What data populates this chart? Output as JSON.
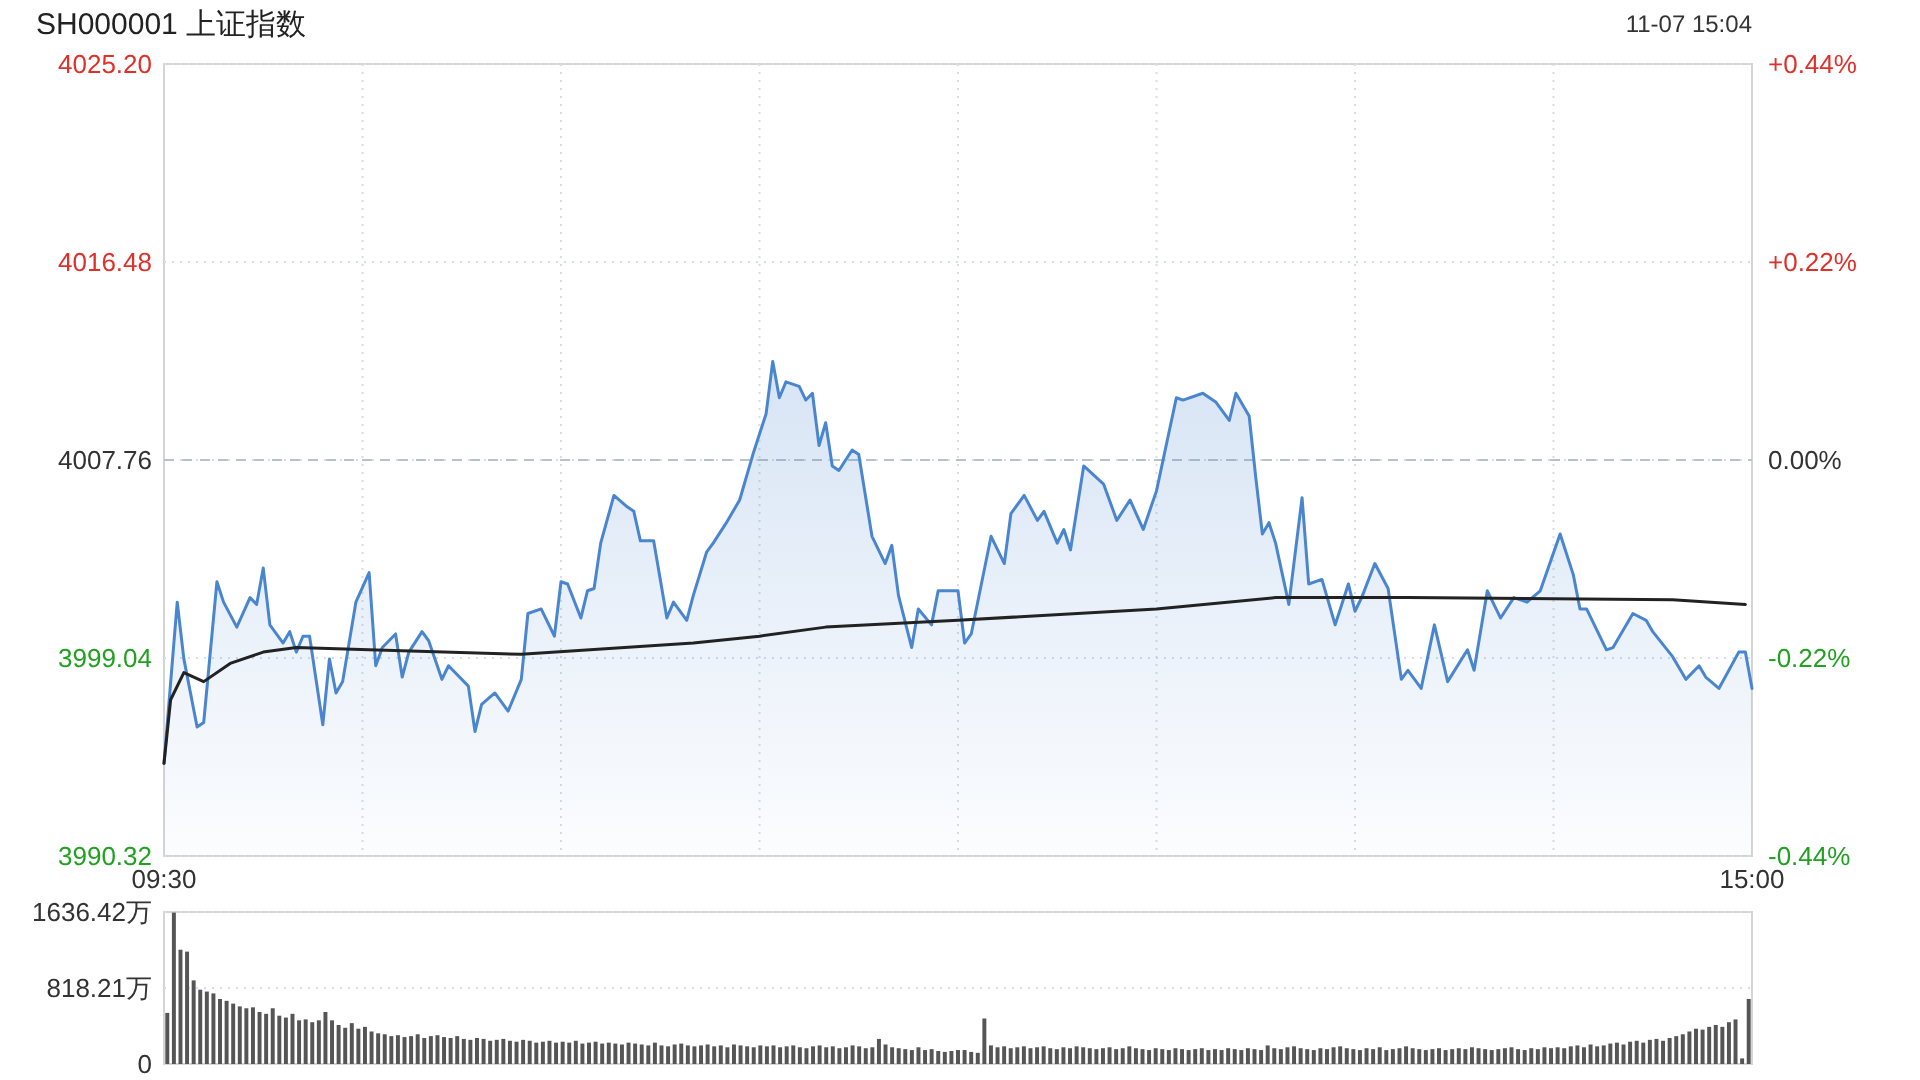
{
  "chart_data": [
    {
      "type": "line",
      "title": "SH000001 上证指数",
      "subtitle": "11-07 15:04",
      "categories": [
        "09:30",
        null,
        null,
        null,
        null,
        null,
        null,
        null,
        null,
        null,
        null,
        null,
        null,
        null,
        null,
        null,
        null,
        null,
        null,
        null,
        null,
        null,
        null,
        null,
        null,
        null,
        null,
        null,
        null,
        null,
        null,
        null,
        null,
        null,
        null,
        null,
        null,
        null,
        null,
        null,
        null,
        null,
        null,
        null,
        null,
        null,
        null,
        null,
        null,
        null,
        null,
        null,
        null,
        null,
        null,
        null,
        null,
        null,
        null,
        null,
        null,
        null,
        null,
        null,
        null,
        null,
        null,
        null,
        null,
        null,
        null,
        null,
        null,
        null,
        null,
        null,
        null,
        null,
        null,
        null,
        null,
        null,
        null,
        null,
        null,
        null,
        null,
        null,
        null,
        null,
        null,
        null,
        null,
        null,
        null,
        null,
        null,
        null,
        null,
        null,
        null,
        null,
        null,
        null,
        null,
        null,
        null,
        null,
        null,
        null,
        null,
        null,
        null,
        null,
        null,
        null,
        null,
        null,
        null,
        null,
        null,
        null,
        null,
        null,
        null,
        null,
        null,
        null,
        null,
        null,
        null,
        null,
        null,
        null,
        null,
        null,
        null,
        null,
        null,
        null,
        null,
        null,
        null,
        null,
        null,
        null,
        null,
        null,
        null,
        null,
        null,
        null,
        null,
        null,
        null,
        null,
        null,
        null,
        null,
        null,
        null,
        null,
        null,
        null,
        null,
        null,
        null,
        null,
        null,
        null,
        null,
        null,
        null,
        null,
        null,
        null,
        null,
        null,
        null,
        null,
        null,
        null,
        null,
        null,
        null,
        null,
        null,
        null,
        null,
        null,
        null,
        null,
        null,
        null,
        null,
        null,
        null,
        null,
        null,
        null,
        null,
        null,
        null,
        null,
        null,
        null,
        null,
        null,
        null,
        null,
        null,
        null,
        null,
        null,
        null,
        null,
        null,
        null,
        null,
        null,
        null,
        null,
        null,
        null,
        null,
        null,
        null,
        null,
        null,
        null,
        null,
        null,
        null,
        null,
        null,
        null,
        null,
        null,
        null,
        null,
        "15:00"
      ],
      "series": [
        {
          "type": "area",
          "color": "#4a86d0",
          "values": [
            3994.4,
            null,
            4001.5,
            3999.0,
            null,
            3996.0,
            3996.2,
            null,
            4002.4,
            4001.5,
            null,
            4000.4,
            null,
            4001.7,
            4001.4,
            4003.0,
            4000.5,
            null,
            3999.7,
            4000.2,
            3999.3,
            4000.0,
            4000.0,
            null,
            3996.1,
            3999.0,
            3997.5,
            3998.0,
            null,
            4001.5,
            null,
            4002.8,
            3998.7,
            3999.5,
            null,
            4000.1,
            3998.2,
            3999.3,
            null,
            4000.2,
            3999.8,
            null,
            3998.1,
            3998.7,
            null,
            null,
            3997.8,
            3995.8,
            3997.0,
            null,
            3997.5,
            null,
            3996.7,
            null,
            3998.1,
            4001.0,
            null,
            4001.2,
            null,
            4000.0,
            4002.4,
            4002.3,
            null,
            4000.8,
            4002.0,
            4002.1,
            4004.1,
            null,
            4006.2,
            null,
            4005.7,
            4005.5,
            4004.2,
            null,
            4004.2,
            null,
            4000.8,
            4001.5,
            null,
            4000.7,
            4001.8,
            null,
            4003.7,
            4004.1,
            null,
            4005.0,
            null,
            4006.0,
            null,
            4008.0,
            null,
            4009.8,
            4012.1,
            4010.5,
            4011.2,
            null,
            4011.0,
            4010.4,
            4010.7,
            4008.4,
            4009.4,
            4007.5,
            4007.3,
            null,
            4008.2,
            4008.0,
            null,
            4004.4,
            null,
            4003.2,
            4004.0,
            4001.8,
            null,
            3999.5,
            4001.2,
            null,
            4000.5,
            4002.0,
            null,
            null,
            4002.0,
            3999.7,
            4000.1,
            null,
            null,
            4004.4,
            null,
            4003.2,
            4005.4,
            null,
            4006.2,
            null,
            4005.1,
            4005.5,
            null,
            4004.1,
            4004.7,
            4003.8,
            null,
            4007.5,
            null,
            null,
            4006.7,
            null,
            4005.1,
            null,
            4006.0,
            null,
            4004.7,
            null,
            4006.4,
            null,
            null,
            4010.5,
            4010.4,
            null,
            null,
            4010.7,
            null,
            4010.3,
            null,
            4009.5,
            4010.7,
            null,
            4009.7,
            4007.0,
            4004.5,
            4005.0,
            4004.1,
            null,
            4001.4,
            null,
            4006.1,
            4002.3,
            null,
            4002.5,
            null,
            4000.5,
            null,
            4002.3,
            4001.1,
            4001.7,
            null,
            4003.2,
            null,
            4002.1,
            null,
            3998.1,
            3998.5,
            null,
            3997.7,
            null,
            4000.5,
            null,
            3998.0,
            null,
            null,
            3999.4,
            3998.5,
            null,
            4002.0,
            null,
            4000.8,
            null,
            4001.7,
            null,
            4001.5,
            null,
            4002.0,
            null,
            null,
            4004.5,
            null,
            4002.7,
            4001.2,
            4001.2,
            null,
            null,
            3999.4,
            3999.5,
            null,
            null,
            4001.0,
            null,
            4000.7,
            4000.2,
            null,
            null,
            3999.1,
            null,
            3998.1,
            null,
            3998.7,
            3998.2,
            null,
            3997.7,
            null,
            null,
            3999.3,
            3999.3,
            3997.7
          ]
        },
        {
          "type": "line",
          "color": "#222222",
          "values": [
            3994.4,
            3997.2,
            null,
            3998.4,
            null,
            null,
            3998.0,
            null,
            null,
            null,
            3998.8,
            null,
            null,
            null,
            null,
            3999.3,
            null,
            null,
            null,
            null,
            3999.5,
            null,
            null,
            null,
            null,
            null,
            null,
            null,
            null,
            null,
            null,
            3999.4,
            null,
            null,
            null,
            null,
            null,
            null,
            null,
            null,
            null,
            null,
            null,
            null,
            null,
            null,
            null,
            null,
            null,
            null,
            null,
            null,
            null,
            null,
            3999.2,
            null,
            null,
            null,
            null,
            null,
            null,
            null,
            null,
            null,
            null,
            null,
            null,
            null,
            null,
            null,
            null,
            null,
            null,
            null,
            null,
            null,
            null,
            null,
            null,
            null,
            3999.7,
            null,
            null,
            null,
            null,
            null,
            null,
            null,
            null,
            null,
            4000.0,
            null,
            null,
            null,
            null,
            null,
            null,
            null,
            null,
            null,
            4000.4,
            null,
            null,
            null,
            null,
            null,
            null,
            null,
            null,
            null,
            null,
            null,
            null,
            null,
            null,
            null,
            null,
            null,
            null,
            null,
            4000.7,
            null,
            null,
            null,
            null,
            null,
            null,
            null,
            null,
            null,
            null,
            null,
            null,
            null,
            null,
            null,
            null,
            null,
            null,
            null,
            null,
            null,
            null,
            null,
            null,
            null,
            null,
            null,
            null,
            null,
            4001.2,
            null,
            null,
            null,
            null,
            null,
            null,
            null,
            null,
            null,
            null,
            null,
            null,
            null,
            null,
            null,
            null,
            null,
            4001.7,
            null,
            null,
            null,
            null,
            null,
            null,
            null,
            null,
            null,
            null,
            null,
            null,
            null,
            null,
            null,
            null,
            null,
            null,
            null,
            4001.7,
            null,
            null,
            null,
            null,
            null,
            null,
            null,
            null,
            null,
            null,
            null,
            null,
            null,
            null,
            null,
            null,
            null,
            null,
            null,
            null,
            null,
            null,
            null,
            null,
            null,
            null,
            null,
            null,
            null,
            null,
            null,
            null,
            null,
            null,
            null,
            null,
            null,
            null,
            null,
            4001.6,
            null,
            null,
            null,
            null,
            null,
            null,
            null,
            null,
            null,
            null,
            4001.4,
            null
          ]
        }
      ],
      "ylim": [
        3990.32,
        4025.2
      ],
      "yticks": [
        {
          "value": 3990.32,
          "label": "3990.32"
        },
        {
          "value": 3999.04,
          "label": "3999.04"
        },
        {
          "value": 4007.76,
          "label": "4007.76"
        },
        {
          "value": 4016.48,
          "label": "4016.48"
        },
        {
          "value": 4025.2,
          "label": "4025.20"
        }
      ],
      "y2lim": [
        -0.44,
        0.44
      ],
      "y2ticks": [
        {
          "value": -0.44,
          "label": "-0.44%"
        },
        {
          "value": -0.22,
          "label": "-0.22%"
        },
        {
          "value": 0,
          "label": "0.00%"
        },
        {
          "value": 0.22,
          "label": "+0.22%"
        },
        {
          "value": 0.44,
          "label": "+0.44%"
        }
      ],
      "grid": true,
      "ref_lines": [
        {
          "axis": "y",
          "value": 4007.76,
          "line_style": "dashed"
        }
      ]
    },
    {
      "type": "bar",
      "color": "#555555",
      "categories": [
        null,
        null,
        null,
        null,
        null,
        null,
        null,
        null,
        null,
        null,
        null,
        null,
        null,
        null,
        null,
        null,
        null,
        null,
        null,
        null,
        null,
        null,
        null,
        null,
        null,
        null,
        null,
        null,
        null,
        null,
        null,
        null,
        null,
        null,
        null,
        null,
        null,
        null,
        null,
        null,
        null,
        null,
        null,
        null,
        null,
        null,
        null,
        null,
        null,
        null,
        null,
        null,
        null,
        null,
        null,
        null,
        null,
        null,
        null,
        null,
        null,
        null,
        null,
        null,
        null,
        null,
        null,
        null,
        null,
        null,
        null,
        null,
        null,
        null,
        null,
        null,
        null,
        null,
        null,
        null,
        null,
        null,
        null,
        null,
        null,
        null,
        null,
        null,
        null,
        null,
        null,
        null,
        null,
        null,
        null,
        null,
        null,
        null,
        null,
        null,
        null,
        null,
        null,
        null,
        null,
        null,
        null,
        null,
        null,
        null,
        null,
        null,
        null,
        null,
        null,
        null,
        null,
        null,
        null,
        null,
        null,
        null,
        null,
        null,
        null,
        null,
        null,
        null,
        null,
        null,
        null,
        null,
        null,
        null,
        null,
        null,
        null,
        null,
        null,
        null,
        null,
        null,
        null,
        null,
        null,
        null,
        null,
        null,
        null,
        null,
        null,
        null,
        null,
        null,
        null,
        null,
        null,
        null,
        null,
        null,
        null,
        null,
        null,
        null,
        null,
        null,
        null,
        null,
        null,
        null,
        null,
        null,
        null,
        null,
        null,
        null,
        null,
        null,
        null,
        null,
        null,
        null,
        null,
        null,
        null,
        null,
        null,
        null,
        null,
        null,
        null,
        null,
        null,
        null,
        null,
        null,
        null,
        null,
        null,
        null,
        null,
        null,
        null,
        null,
        null,
        null,
        null,
        null,
        null,
        null,
        null,
        null,
        null,
        null,
        null,
        null,
        null,
        null,
        null,
        null,
        null,
        null,
        null,
        null,
        null,
        null,
        null,
        null,
        null,
        null,
        null,
        null,
        null,
        null,
        null,
        null,
        null,
        null,
        null,
        null,
        null
      ],
      "values": [
        550,
        1630,
        1230,
        1210,
        900,
        800,
        780,
        760,
        700,
        680,
        650,
        620,
        600,
        610,
        560,
        540,
        600,
        520,
        500,
        540,
        470,
        480,
        450,
        470,
        560,
        470,
        420,
        390,
        440,
        380,
        400,
        350,
        330,
        320,
        300,
        310,
        290,
        300,
        320,
        280,
        300,
        310,
        290,
        280,
        300,
        270,
        260,
        280,
        270,
        250,
        260,
        270,
        250,
        240,
        260,
        250,
        230,
        240,
        250,
        230,
        240,
        230,
        250,
        220,
        230,
        240,
        220,
        230,
        220,
        210,
        230,
        220,
        210,
        200,
        230,
        200,
        190,
        210,
        220,
        200,
        190,
        200,
        210,
        190,
        200,
        180,
        210,
        200,
        190,
        180,
        200,
        190,
        200,
        180,
        190,
        200,
        180,
        170,
        190,
        200,
        180,
        190,
        170,
        180,
        200,
        190,
        170,
        180,
        270,
        210,
        180,
        170,
        160,
        150,
        180,
        150,
        160,
        140,
        130,
        140,
        150,
        150,
        130,
        120,
        490,
        200,
        180,
        190,
        170,
        180,
        190,
        170,
        180,
        190,
        170,
        160,
        180,
        170,
        190,
        180,
        170,
        160,
        170,
        180,
        160,
        170,
        190,
        170,
        160,
        150,
        170,
        160,
        150,
        170,
        160,
        150,
        160,
        170,
        150,
        160,
        150,
        170,
        160,
        150,
        170,
        160,
        150,
        200,
        170,
        160,
        180,
        190,
        170,
        160,
        150,
        170,
        160,
        180,
        190,
        170,
        160,
        150,
        170,
        160,
        180,
        150,
        160,
        170,
        190,
        170,
        160,
        150,
        160,
        170,
        150,
        160,
        170,
        160,
        180,
        170,
        160,
        150,
        160,
        170,
        180,
        160,
        150,
        170,
        160,
        180,
        170,
        180,
        170,
        190,
        200,
        180,
        210,
        190,
        200,
        220,
        230,
        210,
        240,
        250,
        230,
        260,
        270,
        250,
        280,
        300,
        320,
        350,
        380,
        370,
        400,
        420,
        400,
        450,
        480,
        60,
        700
      ],
      "ylim": [
        0,
        1636.42
      ],
      "yticks": [
        {
          "value": 0,
          "label": "0"
        },
        {
          "value": 818.21,
          "label": "818.21万"
        },
        {
          "value": 1636.42,
          "label": "1636.42万"
        }
      ],
      "grid": "y",
      "tick_labels": "y"
    }
  ]
}
